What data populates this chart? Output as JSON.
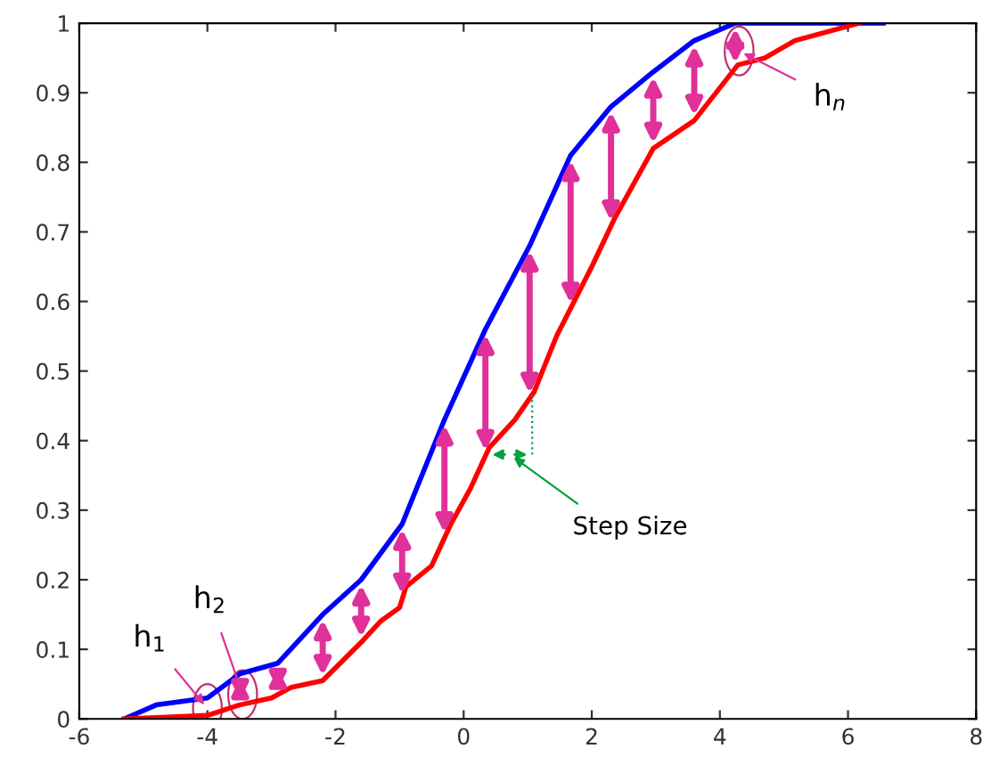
{
  "chart_data": {
    "type": "line",
    "series": [
      {
        "color": "#0000ff",
        "x": [
          -5.3,
          -4.8,
          -4.0,
          -3.49,
          -2.9,
          -2.2,
          -1.6,
          -0.96,
          -0.3,
          0.34,
          1.03,
          1.67,
          2.3,
          2.96,
          3.6,
          4.24,
          6.55
        ],
        "values": [
          0,
          0.02,
          0.03,
          0.065,
          0.08,
          0.15,
          0.2,
          0.28,
          0.43,
          0.56,
          0.68,
          0.81,
          0.88,
          0.93,
          0.975,
          1.0,
          1.0
        ]
      },
      {
        "color": "#ff0000",
        "x": [
          -5.3,
          -4.0,
          -3.5,
          -3.0,
          -2.7,
          -2.2,
          -1.6,
          -1.3,
          -1.0,
          -0.9,
          -0.5,
          -0.2,
          0.1,
          0.4,
          0.8,
          1.1,
          1.45,
          2.0,
          2.36,
          2.96,
          3.6,
          4.28,
          4.7,
          5.17,
          6.17
        ],
        "values": [
          0,
          0.005,
          0.02,
          0.03,
          0.045,
          0.055,
          0.11,
          0.14,
          0.16,
          0.19,
          0.22,
          0.28,
          0.33,
          0.39,
          0.43,
          0.47,
          0.55,
          0.65,
          0.72,
          0.82,
          0.86,
          0.94,
          0.95,
          0.975,
          1.0
        ]
      }
    ],
    "xlim": [
      -6,
      8
    ],
    "xticks": [
      -6,
      -4,
      -2,
      0,
      2,
      4,
      6,
      8
    ],
    "ylim": [
      0,
      1
    ],
    "yticks": [
      0,
      0.1,
      0.2,
      0.3,
      0.4,
      0.5,
      0.6,
      0.7,
      0.8,
      0.9,
      1
    ],
    "annotations": [
      {
        "text": "h$_{1}$",
        "x": -4.0,
        "y": 0.015
      },
      {
        "text": "h$_{2}$",
        "x": -3.45,
        "y": 0.035
      },
      {
        "text": "h$_{n}$",
        "x": 4.3,
        "y": 0.96
      },
      "Step Size"
    ]
  }
}
